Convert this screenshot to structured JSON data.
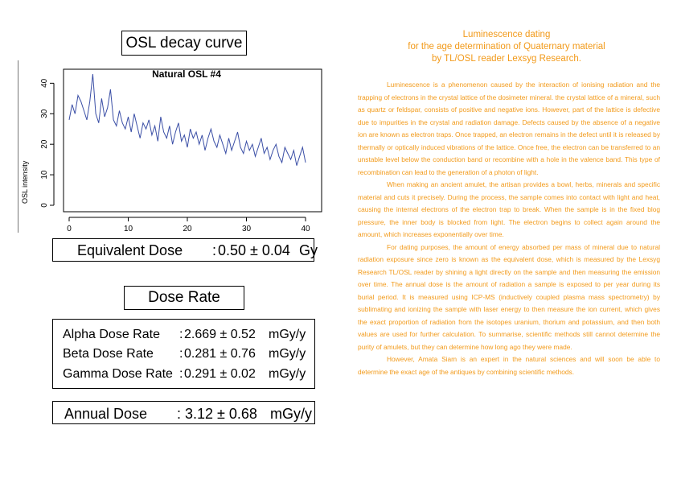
{
  "left": {
    "osl_title": "OSL decay curve",
    "equivalent": {
      "label": "Equivalent Dose",
      "sep": ":",
      "value": "0.50 ± 0.04",
      "unit": "Gy"
    },
    "dose_rate_title": "Dose Rate",
    "dose_rates": [
      {
        "label": "Alpha Dose Rate",
        "sep": ":",
        "value": "2.669 ± 0.52",
        "unit": "mGy/y"
      },
      {
        "label": "Beta Dose Rate",
        "sep": ":",
        "value": "0.281 ± 0.76",
        "unit": "mGy/y"
      },
      {
        "label": "Gamma Dose Rate",
        "sep": ":",
        "value": "0.291 ± 0.02",
        "unit": "mGy/y"
      }
    ],
    "annual": {
      "label": "Annual Dose",
      "sep": ":",
      "value": "3.12 ± 0.68",
      "unit": "mGy/y"
    }
  },
  "right": {
    "title_lines": [
      "Luminescence dating",
      "for the age determination of Quaternary material",
      "by TL/OSL reader Lexsyg Research."
    ],
    "paragraphs": [
      "Luminescence is a phenomenon caused by the interaction of ionising radiation and the trapping of electrons in the crystal lattice of the dosimeter mineral. the crystal lattice of a mineral, such as quartz or feldspar, consists of positive and negative ions. However, part of the lattice is defective due to impurities in the crystal and radiation damage. Defects caused by the absence of a negative ion are known as electron traps. Once trapped, an electron remains in the defect until it is released by thermally or optically induced vibrations of the lattice. Once free, the electron can be transferred to an unstable level below the conduction band or recombine with a hole in the valence band. This type of recombination can lead to the generation of a photon of light.",
      "When making an ancient amulet, the artisan provides a bowl, herbs, minerals and specific material and cuts it precisely. During the process, the sample comes into contact with light and heat, causing the internal electrons of the electron trap to break. When the sample is in the fixed blog pressure, the inner body is blocked from light. The electron begins to collect again around the amount, which increases exponentially over time.",
      "For dating purposes, the amount of energy absorbed per mass of mineral due to natural radiation exposure since zero is known as the equivalent dose, which is measured by the Lexsyg Research TL/OSL reader by shining a light directly on the sample and then measuring the emission over time. The annual dose is the amount of radiation a sample is exposed to per year during its burial period. It is measured using ICP-MS (inductively coupled plasma mass spectrometry) by sublimating and ionizing the sample with laser energy to then measure the ion current, which gives the exact proportion of radiation from the isotopes uranium, thorium and potassium, and then both values are used for further calculation. To summarise, scientific methods still cannot determine the purity of amulets, but they can determine how long ago they were made.",
      "However, Amata Siam is an expert in the natural sciences and will soon be able to determine the exact age of the antiques by combining scientific methods."
    ]
  },
  "chart_data": {
    "type": "line",
    "title": "Natural OSL #4",
    "xlabel": "",
    "ylabel": "OSL intensity",
    "xlim": [
      0,
      40
    ],
    "ylim": [
      0,
      43
    ],
    "xticks": [
      0,
      10,
      20,
      30,
      40
    ],
    "yticks": [
      0,
      10,
      20,
      30,
      40
    ],
    "grid": false,
    "line_color": "#3b4fa6",
    "series": [
      {
        "x": [
          0,
          0.5,
          1,
          1.5,
          2,
          2.5,
          3,
          3.5,
          4,
          4.5,
          5,
          5.5,
          6,
          6.5,
          7,
          7.5,
          8,
          8.5,
          9,
          9.5,
          10,
          10.5,
          11,
          11.5,
          12,
          12.5,
          13,
          13.5,
          14,
          14.5,
          15,
          15.5,
          16,
          16.5,
          17,
          17.5,
          18,
          18.5,
          19,
          19.5,
          20,
          20.5,
          21,
          21.5,
          22,
          22.5,
          23,
          23.5,
          24,
          24.5,
          25,
          25.5,
          26,
          26.5,
          27,
          27.5,
          28,
          28.5,
          29,
          29.5,
          30,
          30.5,
          31,
          31.5,
          32,
          32.5,
          33,
          33.5,
          34,
          34.5,
          35,
          35.5,
          36,
          36.5,
          37,
          37.5,
          38,
          38.5,
          39,
          39.5,
          40
        ],
        "y": [
          28,
          33,
          30,
          36,
          34,
          31,
          28,
          34,
          43,
          30,
          27,
          35,
          29,
          32,
          38,
          28,
          26,
          31,
          27,
          25,
          29,
          24,
          30,
          26,
          22,
          27,
          25,
          28,
          23,
          26,
          21,
          29,
          24,
          22,
          26,
          20,
          24,
          27,
          21,
          23,
          19,
          25,
          22,
          24,
          20,
          23,
          18,
          22,
          25,
          21,
          19,
          23,
          20,
          17,
          22,
          18,
          21,
          24,
          19,
          17,
          21,
          18,
          20,
          16,
          19,
          22,
          17,
          19,
          15,
          18,
          20,
          16,
          14,
          19,
          17,
          15,
          18,
          13,
          16,
          19,
          14
        ]
      }
    ]
  }
}
